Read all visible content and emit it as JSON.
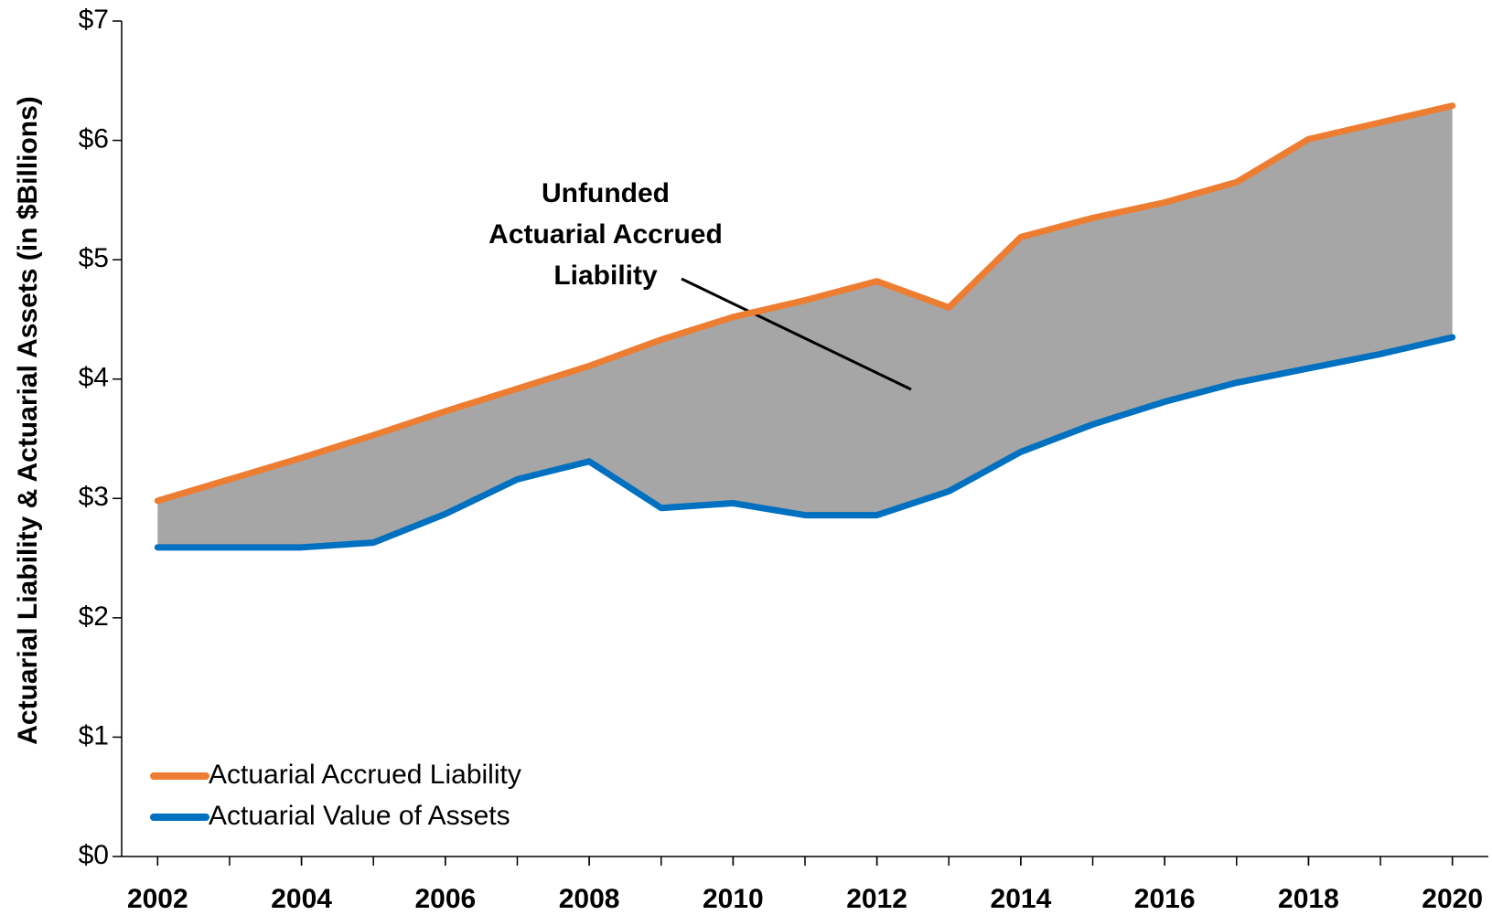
{
  "chart_data": {
    "type": "line",
    "y_label": "Actuarial Liability & Actuarial Assets (in $Billions)",
    "annotation": [
      "Unfunded",
      "Actuarial Accrued",
      "Liability"
    ],
    "x": [
      2002,
      2003,
      2004,
      2005,
      2006,
      2007,
      2008,
      2009,
      2010,
      2011,
      2012,
      2013,
      2014,
      2015,
      2016,
      2017,
      2018,
      2019,
      2020
    ],
    "series": [
      {
        "name": "Actuarial Accrued Liability",
        "color": "#ED7D31",
        "values": [
          2.98,
          3.16,
          3.34,
          3.53,
          3.73,
          3.92,
          4.11,
          4.33,
          4.52,
          4.66,
          4.82,
          4.6,
          5.19,
          5.35,
          5.48,
          5.65,
          6.01,
          6.15,
          6.29
        ]
      },
      {
        "name": "Actuarial Value of Assets",
        "color": "#0070C0",
        "values": [
          2.59,
          2.59,
          2.59,
          2.63,
          2.87,
          3.16,
          3.31,
          2.92,
          2.96,
          2.86,
          2.86,
          3.06,
          3.39,
          3.62,
          3.81,
          3.97,
          4.09,
          4.21,
          4.35
        ]
      }
    ],
    "fill_between_color": "#A6A6A6",
    "xlim": [
      2001.5,
      2020.5
    ],
    "xticks": [
      2002,
      2004,
      2006,
      2008,
      2010,
      2012,
      2014,
      2016,
      2018,
      2020
    ],
    "ylim": [
      0,
      7
    ],
    "yticks": [
      {
        "value": 0,
        "label": "$0"
      },
      {
        "value": 1,
        "label": "$1"
      },
      {
        "value": 2,
        "label": "$2"
      },
      {
        "value": 3,
        "label": "$3"
      },
      {
        "value": 4,
        "label": "$4"
      },
      {
        "value": 5,
        "label": "$5"
      },
      {
        "value": 6,
        "label": "$6"
      },
      {
        "value": 7,
        "label": "$7"
      }
    ],
    "grid": false,
    "legend": "lower left"
  }
}
